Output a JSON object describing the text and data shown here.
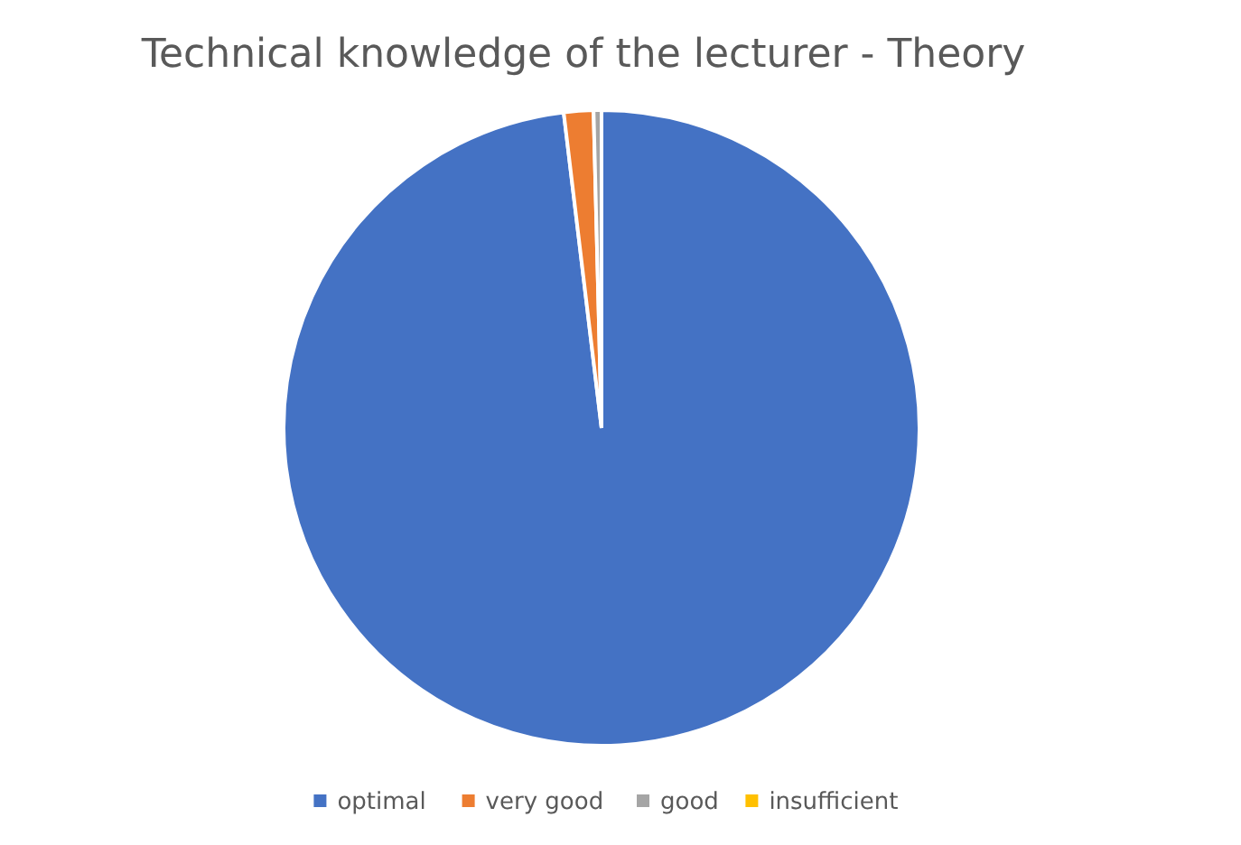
{
  "chart_data": {
    "type": "pie",
    "title": "Technical knowledge of the lecturer - Theory",
    "categories": [
      "optimal",
      "very good",
      "good",
      "insufficient"
    ],
    "values": [
      98.1,
      1.5,
      0.4,
      0
    ],
    "colors": [
      "#4472c4",
      "#ed7d31",
      "#a5a5a5",
      "#ffc000"
    ],
    "legend": "bottom"
  }
}
